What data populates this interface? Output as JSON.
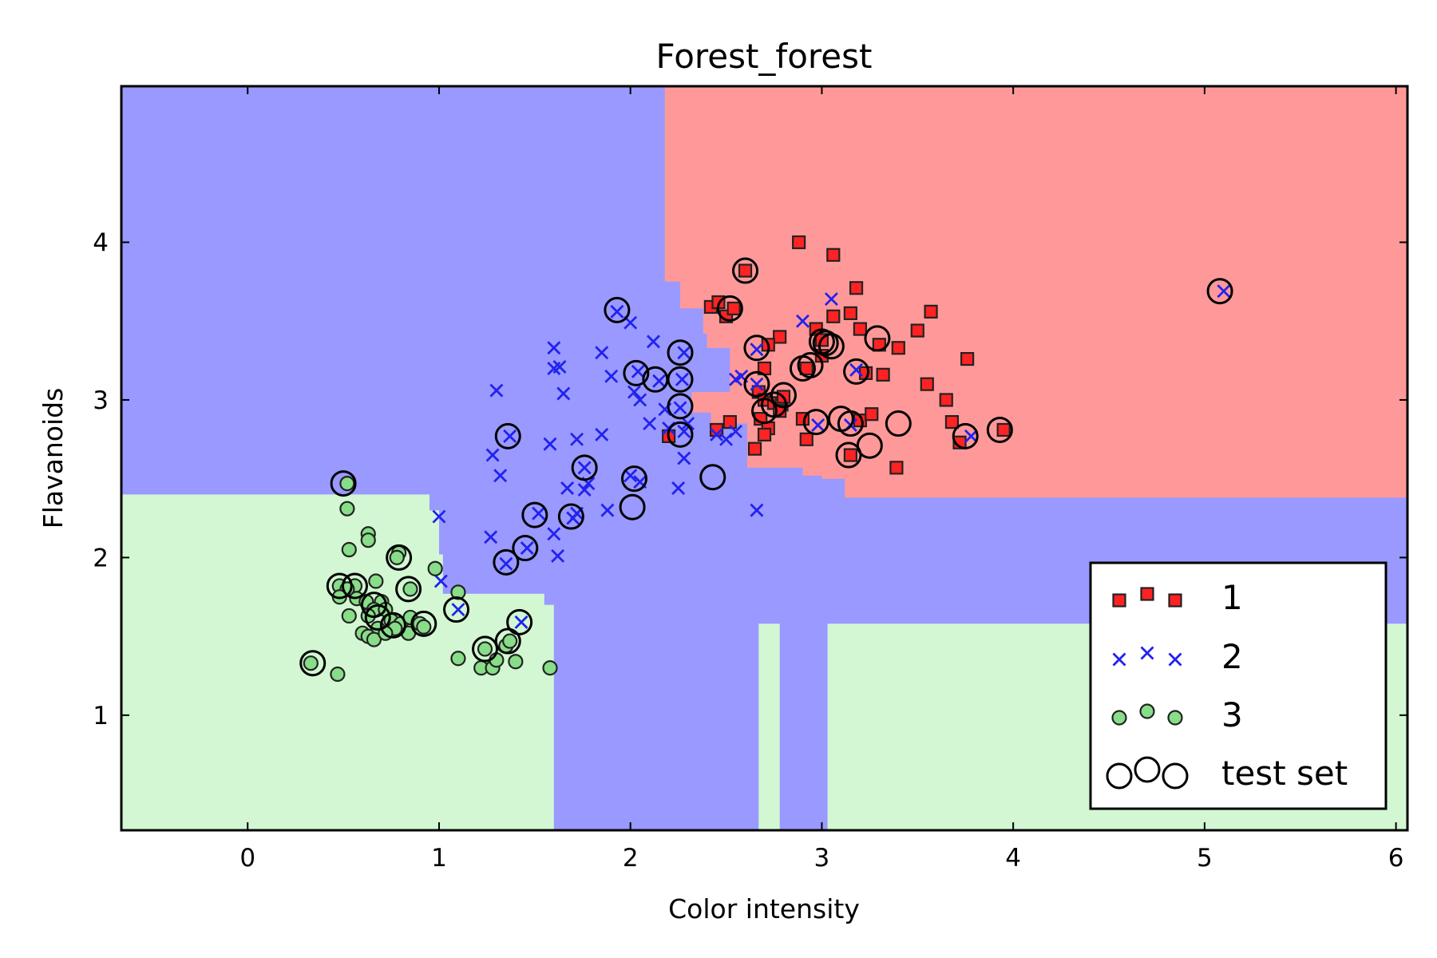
{
  "chart_data": {
    "type": "scatter",
    "title": "Forest_forest",
    "xlabel": "Color intensity",
    "ylabel": "Flavanoids",
    "xlim": [
      -0.66,
      6.06
    ],
    "ylim": [
      0.27,
      4.99
    ],
    "xticks": [
      0,
      1,
      2,
      3,
      4,
      5,
      6
    ],
    "yticks": [
      1,
      2,
      3,
      4
    ],
    "grid": false,
    "legend_position": "lower-right",
    "region_colors": {
      "1": "#ff9999",
      "2": "#9999ff",
      "3": "#d2f7d2"
    },
    "regions": [
      {
        "class": "3",
        "polygons": [
          [
            [
              -0.66,
              0.27
            ],
            [
              -0.66,
              2.4
            ],
            [
              0.95,
              2.4
            ],
            [
              0.95,
              2.3
            ],
            [
              1.0,
              2.3
            ],
            [
              1.0,
              2.02
            ],
            [
              1.02,
              2.02
            ],
            [
              1.02,
              1.77
            ],
            [
              1.55,
              1.77
            ],
            [
              1.55,
              1.7
            ],
            [
              1.6,
              1.7
            ],
            [
              1.6,
              0.27
            ]
          ],
          [
            [
              2.67,
              0.27
            ],
            [
              2.67,
              1.58
            ],
            [
              2.78,
              1.58
            ],
            [
              2.78,
              0.27
            ]
          ],
          [
            [
              3.03,
              0.27
            ],
            [
              3.03,
              1.58
            ],
            [
              6.06,
              1.58
            ],
            [
              6.06,
              0.27
            ]
          ]
        ]
      },
      {
        "class": "1",
        "polygons": [
          [
            [
              2.18,
              4.99
            ],
            [
              6.06,
              4.99
            ],
            [
              6.06,
              2.38
            ],
            [
              3.12,
              2.38
            ],
            [
              3.12,
              2.5
            ],
            [
              3.0,
              2.5
            ],
            [
              3.0,
              2.52
            ],
            [
              2.9,
              2.52
            ],
            [
              2.9,
              2.57
            ],
            [
              2.61,
              2.57
            ],
            [
              2.61,
              2.85
            ],
            [
              2.42,
              2.85
            ],
            [
              2.42,
              2.92
            ],
            [
              2.32,
              2.92
            ],
            [
              2.32,
              3.05
            ],
            [
              2.52,
              3.05
            ],
            [
              2.52,
              3.33
            ],
            [
              2.4,
              3.33
            ],
            [
              2.4,
              3.42
            ],
            [
              2.38,
              3.42
            ],
            [
              2.38,
              3.58
            ],
            [
              2.26,
              3.58
            ],
            [
              2.26,
              3.75
            ],
            [
              2.18,
              3.75
            ]
          ]
        ]
      }
    ],
    "series": [
      {
        "name": "1",
        "marker": "square",
        "color": "#ff2222",
        "points": [
          [
            2.88,
            4.0
          ],
          [
            3.06,
            3.92
          ],
          [
            2.6,
            3.82
          ],
          [
            2.42,
            3.59
          ],
          [
            2.46,
            3.62
          ],
          [
            2.5,
            3.53
          ],
          [
            2.54,
            3.58
          ],
          [
            3.18,
            3.71
          ],
          [
            3.15,
            3.55
          ],
          [
            3.2,
            3.45
          ],
          [
            3.06,
            3.53
          ],
          [
            2.97,
            3.45
          ],
          [
            3.0,
            3.38
          ],
          [
            3.3,
            3.35
          ],
          [
            3.4,
            3.33
          ],
          [
            3.5,
            3.44
          ],
          [
            3.57,
            3.56
          ],
          [
            2.78,
            3.4
          ],
          [
            2.72,
            3.35
          ],
          [
            3.0,
            3.28
          ],
          [
            3.76,
            3.26
          ],
          [
            2.92,
            3.2
          ],
          [
            2.7,
            3.2
          ],
          [
            3.23,
            3.17
          ],
          [
            3.32,
            3.16
          ],
          [
            3.55,
            3.1
          ],
          [
            3.65,
            3.0
          ],
          [
            2.67,
            3.05
          ],
          [
            2.7,
            3.0
          ],
          [
            2.75,
            2.98
          ],
          [
            2.79,
            2.97
          ],
          [
            2.8,
            3.02
          ],
          [
            2.78,
            2.93
          ],
          [
            2.68,
            2.88
          ],
          [
            2.72,
            2.82
          ],
          [
            2.7,
            2.78
          ],
          [
            2.45,
            2.81
          ],
          [
            2.52,
            2.86
          ],
          [
            2.9,
            2.88
          ],
          [
            3.2,
            2.87
          ],
          [
            3.26,
            2.91
          ],
          [
            3.68,
            2.86
          ],
          [
            3.72,
            2.73
          ],
          [
            2.92,
            2.75
          ],
          [
            3.15,
            2.65
          ],
          [
            3.39,
            2.57
          ],
          [
            2.65,
            2.69
          ],
          [
            2.2,
            2.77
          ],
          [
            3.95,
            2.81
          ]
        ]
      },
      {
        "name": "2",
        "marker": "x",
        "color": "#2222ee",
        "points": [
          [
            5.1,
            3.69
          ],
          [
            3.05,
            3.64
          ],
          [
            2.9,
            3.5
          ],
          [
            2.0,
            3.49
          ],
          [
            1.93,
            3.56
          ],
          [
            2.12,
            3.37
          ],
          [
            1.85,
            3.3
          ],
          [
            1.6,
            3.33
          ],
          [
            1.6,
            3.2
          ],
          [
            1.63,
            3.21
          ],
          [
            1.9,
            3.15
          ],
          [
            2.04,
            3.18
          ],
          [
            2.15,
            3.12
          ],
          [
            2.28,
            3.3
          ],
          [
            2.27,
            3.13
          ],
          [
            2.26,
            2.95
          ],
          [
            2.05,
            3.0
          ],
          [
            2.18,
            2.94
          ],
          [
            2.1,
            2.85
          ],
          [
            2.3,
            2.85
          ],
          [
            2.02,
            3.05
          ],
          [
            1.3,
            3.06
          ],
          [
            1.65,
            3.04
          ],
          [
            2.55,
            3.13
          ],
          [
            2.58,
            3.15
          ],
          [
            2.66,
            3.1
          ],
          [
            2.66,
            3.32
          ],
          [
            2.98,
            2.84
          ],
          [
            3.15,
            2.84
          ],
          [
            3.18,
            3.19
          ],
          [
            3.78,
            2.77
          ],
          [
            1.37,
            2.77
          ],
          [
            1.58,
            2.72
          ],
          [
            1.72,
            2.75
          ],
          [
            1.85,
            2.78
          ],
          [
            2.2,
            2.82
          ],
          [
            2.28,
            2.8
          ],
          [
            1.76,
            2.57
          ],
          [
            1.28,
            2.65
          ],
          [
            1.32,
            2.52
          ],
          [
            2.45,
            2.78
          ],
          [
            2.5,
            2.75
          ],
          [
            2.55,
            2.8
          ],
          [
            2.0,
            2.52
          ],
          [
            2.05,
            2.48
          ],
          [
            1.67,
            2.44
          ],
          [
            1.76,
            2.43
          ],
          [
            1.78,
            2.47
          ],
          [
            2.25,
            2.44
          ],
          [
            2.28,
            2.63
          ],
          [
            1.52,
            2.28
          ],
          [
            1.7,
            2.25
          ],
          [
            1.72,
            2.28
          ],
          [
            1.88,
            2.3
          ],
          [
            2.66,
            2.3
          ],
          [
            1.0,
            2.26
          ],
          [
            1.27,
            2.13
          ],
          [
            1.46,
            2.06
          ],
          [
            1.6,
            2.15
          ],
          [
            1.62,
            2.01
          ],
          [
            1.35,
            1.96
          ],
          [
            1.01,
            1.85
          ],
          [
            1.1,
            1.67
          ],
          [
            1.43,
            1.59
          ]
        ]
      },
      {
        "name": "3",
        "marker": "circle",
        "color": "#88dd88",
        "points": [
          [
            0.52,
            2.47
          ],
          [
            0.52,
            2.31
          ],
          [
            0.63,
            2.15
          ],
          [
            0.63,
            2.11
          ],
          [
            0.53,
            2.05
          ],
          [
            0.79,
            2.03
          ],
          [
            0.78,
            2.0
          ],
          [
            0.98,
            1.93
          ],
          [
            0.85,
            1.8
          ],
          [
            0.48,
            1.82
          ],
          [
            0.56,
            1.82
          ],
          [
            0.52,
            1.8
          ],
          [
            0.67,
            1.85
          ],
          [
            0.48,
            1.75
          ],
          [
            0.57,
            1.74
          ],
          [
            0.62,
            1.72
          ],
          [
            0.7,
            1.72
          ],
          [
            0.66,
            1.67
          ],
          [
            0.72,
            1.67
          ],
          [
            0.53,
            1.63
          ],
          [
            0.63,
            1.63
          ],
          [
            0.75,
            1.6
          ],
          [
            0.8,
            1.58
          ],
          [
            0.77,
            1.55
          ],
          [
            0.85,
            1.62
          ],
          [
            0.68,
            1.55
          ],
          [
            0.6,
            1.52
          ],
          [
            0.63,
            1.5
          ],
          [
            0.66,
            1.48
          ],
          [
            0.72,
            1.52
          ],
          [
            0.84,
            1.52
          ],
          [
            0.9,
            1.58
          ],
          [
            0.92,
            1.56
          ],
          [
            0.33,
            1.33
          ],
          [
            0.47,
            1.26
          ],
          [
            1.1,
            1.36
          ],
          [
            1.22,
            1.3
          ],
          [
            1.24,
            1.42
          ],
          [
            1.28,
            1.3
          ],
          [
            1.3,
            1.35
          ],
          [
            1.35,
            1.44
          ],
          [
            1.37,
            1.47
          ],
          [
            1.4,
            1.34
          ],
          [
            1.58,
            1.3
          ],
          [
            1.1,
            1.78
          ]
        ]
      }
    ],
    "test_set": [
      [
        5.08,
        3.69
      ],
      [
        2.6,
        3.82
      ],
      [
        2.52,
        3.58
      ],
      [
        1.93,
        3.57
      ],
      [
        2.66,
        3.33
      ],
      [
        3.0,
        3.37
      ],
      [
        3.02,
        3.36
      ],
      [
        3.05,
        3.34
      ],
      [
        3.29,
        3.39
      ],
      [
        2.26,
        3.3
      ],
      [
        2.03,
        3.17
      ],
      [
        2.13,
        3.13
      ],
      [
        2.26,
        3.13
      ],
      [
        2.66,
        3.1
      ],
      [
        2.9,
        3.2
      ],
      [
        2.94,
        3.22
      ],
      [
        3.18,
        3.18
      ],
      [
        2.26,
        2.96
      ],
      [
        2.7,
        2.93
      ],
      [
        2.75,
        2.97
      ],
      [
        2.8,
        3.03
      ],
      [
        2.97,
        2.86
      ],
      [
        3.1,
        2.88
      ],
      [
        3.15,
        2.85
      ],
      [
        3.4,
        2.85
      ],
      [
        3.75,
        2.77
      ],
      [
        3.93,
        2.81
      ],
      [
        2.26,
        2.78
      ],
      [
        1.36,
        2.77
      ],
      [
        1.76,
        2.57
      ],
      [
        2.02,
        2.5
      ],
      [
        2.43,
        2.51
      ],
      [
        3.14,
        2.65
      ],
      [
        3.25,
        2.71
      ],
      [
        0.5,
        2.47
      ],
      [
        1.5,
        2.27
      ],
      [
        1.69,
        2.26
      ],
      [
        2.01,
        2.32
      ],
      [
        1.45,
        2.06
      ],
      [
        1.35,
        1.97
      ],
      [
        0.79,
        2.0
      ],
      [
        0.84,
        1.8
      ],
      [
        0.48,
        1.82
      ],
      [
        0.56,
        1.82
      ],
      [
        0.66,
        1.7
      ],
      [
        0.68,
        1.62
      ],
      [
        0.76,
        1.57
      ],
      [
        0.92,
        1.58
      ],
      [
        1.09,
        1.67
      ],
      [
        1.42,
        1.59
      ],
      [
        1.36,
        1.47
      ],
      [
        1.24,
        1.42
      ],
      [
        0.34,
        1.33
      ]
    ],
    "legend": [
      {
        "label": "1",
        "marker": "square",
        "color": "#ff2222"
      },
      {
        "label": "2",
        "marker": "x",
        "color": "#2222ee"
      },
      {
        "label": "3",
        "marker": "circle",
        "color": "#88dd88"
      },
      {
        "label": "test set",
        "marker": "ring",
        "color": "#000000"
      }
    ]
  }
}
